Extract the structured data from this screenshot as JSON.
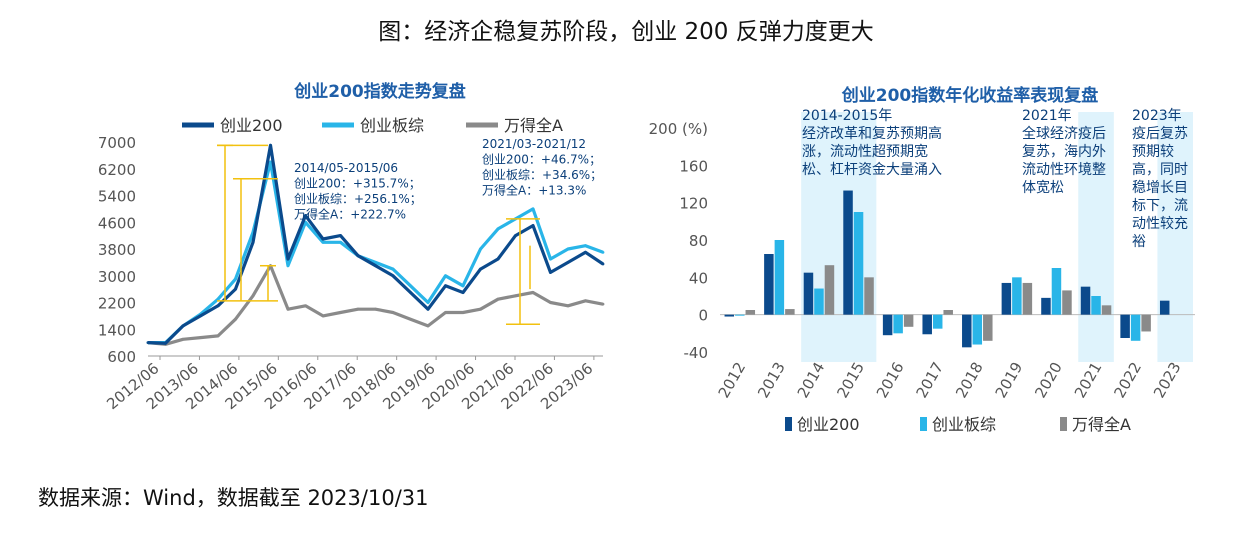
{
  "figure": {
    "title": "图：经济企稳复苏阶段，创业 200 反弹力度更大",
    "source_note": "数据来源：Wind，数据截至 2023/10/31"
  },
  "colors": {
    "cyb200": "#0b4a8c",
    "cybzz": "#29b5e8",
    "wind_a": "#8a8a8a",
    "highlight": "#dff3fc",
    "bracket": "#f2c10f",
    "title_blue": "#1f5fa8"
  },
  "chart_data": [
    {
      "type": "line",
      "title": "创业200指数走势复盘",
      "x_tick_labels": [
        "2012/06",
        "2013/06",
        "2014/06",
        "2015/06",
        "2016/06",
        "2017/06",
        "2018/06",
        "2019/06",
        "2020/06",
        "2021/06",
        "2022/06",
        "2023/06"
      ],
      "x": [
        "2012/06",
        "2012/12",
        "2013/06",
        "2013/12",
        "2014/06",
        "2014/12",
        "2015/03",
        "2015/06",
        "2015/08",
        "2015/10",
        "2016/01",
        "2016/06",
        "2016/12",
        "2017/06",
        "2017/12",
        "2018/06",
        "2018/12",
        "2019/04",
        "2019/12",
        "2020/06",
        "2020/12",
        "2021/06",
        "2021/12",
        "2022/04",
        "2022/10",
        "2023/04",
        "2023/10"
      ],
      "ylim": [
        600,
        7000
      ],
      "y_ticks": [
        600,
        1400,
        2200,
        3000,
        3800,
        4600,
        5400,
        6200,
        7000
      ],
      "series": [
        {
          "name": "创业200",
          "values": [
            1000,
            980,
            1500,
            1800,
            2100,
            2600,
            4000,
            6900,
            3500,
            4800,
            4100,
            4200,
            3600,
            3300,
            3000,
            2500,
            2000,
            2700,
            2500,
            3200,
            3500,
            4200,
            4500,
            3100,
            3400,
            3700,
            3350
          ]
        },
        {
          "name": "创业板综",
          "values": [
            1000,
            1000,
            1500,
            1850,
            2300,
            2900,
            4300,
            6400,
            3300,
            4600,
            4000,
            4000,
            3600,
            3400,
            3200,
            2700,
            2200,
            3000,
            2700,
            3800,
            4400,
            4700,
            5000,
            3500,
            3800,
            3900,
            3700
          ]
        },
        {
          "name": "万得全A",
          "values": [
            1000,
            950,
            1100,
            1150,
            1200,
            1700,
            2400,
            3300,
            2000,
            2100,
            1800,
            1900,
            2000,
            2000,
            1900,
            1700,
            1500,
            1900,
            1900,
            2000,
            2300,
            2400,
            2500,
            2200,
            2100,
            2250,
            2150
          ]
        }
      ],
      "legend": "top",
      "annotations": [
        {
          "period": "2014/05-2015/06",
          "lines": [
            "2014/05-2015/06",
            "创业200：+315.7%；",
            "创业板综：+256.1%；",
            "万得全A：+222.7%"
          ]
        },
        {
          "period": "2021/03-2021/12",
          "lines": [
            "2021/03-2021/12",
            "创业200：+46.7%；",
            "创业板综：+34.6%；",
            "万得全A：+13.3%"
          ]
        }
      ]
    },
    {
      "type": "bar",
      "title": "创业200指数年化收益率表现复盘",
      "y_unit": "(%)",
      "categories": [
        "2012",
        "2013",
        "2014",
        "2015",
        "2016",
        "2017",
        "2018",
        "2019",
        "2020",
        "2021",
        "2022",
        "2023"
      ],
      "ylim": [
        -40,
        200
      ],
      "y_ticks": [
        -40,
        0,
        40,
        80,
        120,
        160,
        200
      ],
      "series": [
        {
          "name": "创业200",
          "values": [
            -2,
            65,
            45,
            133,
            -22,
            -21,
            -35,
            34,
            18,
            30,
            -25,
            15
          ]
        },
        {
          "name": "创业板综",
          "values": [
            -1,
            80,
            28,
            110,
            -20,
            -15,
            -32,
            40,
            50,
            20,
            -28,
            0
          ]
        },
        {
          "name": "万得全A",
          "values": [
            5,
            6,
            53,
            40,
            -13,
            5,
            -28,
            34,
            26,
            10,
            -18,
            0
          ]
        }
      ],
      "legend": "bottom",
      "highlight_labels": [
        {
          "categories": [
            "2014",
            "2015"
          ],
          "text": [
            "2014-2015年",
            "经济改革和复苏预期高",
            "涨，流动性超预期宽",
            "松、杠杆资金大量涌入"
          ]
        },
        {
          "categories": [
            "2021"
          ],
          "text": [
            "2021年",
            "全球经济疫后",
            "复苏，海内外",
            "流动性环境整",
            "体宽松"
          ]
        },
        {
          "categories": [
            "2023"
          ],
          "text": [
            "2023年",
            "疫后复苏",
            "预期较",
            "高，同时",
            "稳增长目",
            "标下，流",
            "动性较充",
            "裕"
          ]
        }
      ]
    }
  ]
}
